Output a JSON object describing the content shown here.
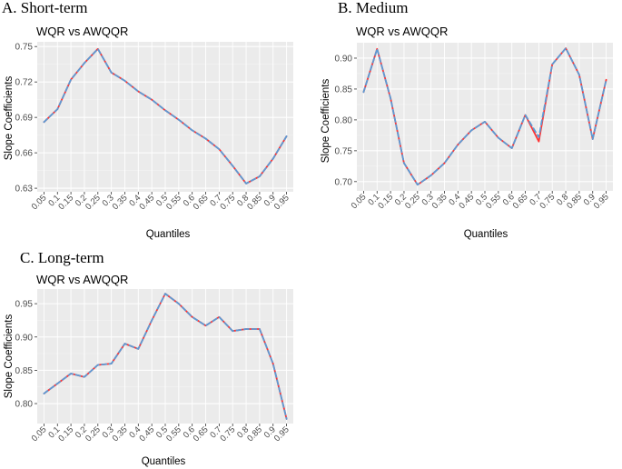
{
  "colors": {
    "panel_bg": "#ebebeb",
    "grid_major": "#ffffff",
    "grid_minor": "#f4f4f4",
    "wqr_line": "#ff3333",
    "awqqr_line": "#5b9bd5"
  },
  "chart_data": [
    {
      "type": "line",
      "panel_label": "A.  Short-term",
      "title": "WQR vs AWQQR",
      "xlabel": "Quantiles",
      "ylabel": "Slope Coefficients",
      "x": [
        0.05,
        0.1,
        0.15,
        0.2,
        0.25,
        0.3,
        0.35,
        0.4,
        0.45,
        0.5,
        0.55,
        0.6,
        0.65,
        0.7,
        0.75,
        0.8,
        0.85,
        0.9,
        0.95
      ],
      "xtick_labels": [
        "0.05",
        "0.1",
        "0.15",
        "0.2",
        "0.25",
        "0.3",
        "0.35",
        "0.4",
        "0.45",
        "0.5",
        "0.55",
        "0.6",
        "0.65",
        "0.7",
        "0.75",
        "0.8",
        "0.85",
        "0.9",
        "0.95"
      ],
      "series": [
        {
          "name": "WQR",
          "values": [
            0.686,
            0.697,
            0.722,
            0.736,
            0.748,
            0.728,
            0.721,
            0.712,
            0.705,
            0.696,
            0.688,
            0.679,
            0.672,
            0.663,
            0.649,
            0.634,
            0.64,
            0.655,
            0.674
          ]
        },
        {
          "name": "AWQQR",
          "values": [
            0.686,
            0.697,
            0.722,
            0.736,
            0.748,
            0.728,
            0.721,
            0.712,
            0.705,
            0.696,
            0.688,
            0.679,
            0.672,
            0.663,
            0.649,
            0.634,
            0.64,
            0.655,
            0.674
          ]
        }
      ],
      "ylim": [
        0.627,
        0.754
      ],
      "yticks": [
        0.63,
        0.66,
        0.69,
        0.72,
        0.75
      ],
      "ytick_labels": [
        "0.63",
        "0.66",
        "0.69",
        "0.72",
        "0.75"
      ],
      "grid": true
    },
    {
      "type": "line",
      "panel_label": "B.  Medium",
      "title": "WQR vs AWQQR",
      "xlabel": "Quantiles",
      "ylabel": "Slope Coefficients",
      "x": [
        0.05,
        0.1,
        0.15,
        0.2,
        0.25,
        0.3,
        0.35,
        0.4,
        0.45,
        0.5,
        0.55,
        0.6,
        0.65,
        0.7,
        0.75,
        0.8,
        0.85,
        0.9,
        0.95
      ],
      "xtick_labels": [
        "0.05",
        "0.1",
        "0.15",
        "0.2",
        "0.25",
        "0.3",
        "0.35",
        "0.4",
        "0.45",
        "0.5",
        "0.55",
        "0.6",
        "0.65",
        "0.7",
        "0.75",
        "0.8",
        "0.85",
        "0.9",
        "0.95"
      ],
      "series": [
        {
          "name": "WQR",
          "values": [
            0.845,
            0.915,
            0.835,
            0.73,
            0.695,
            0.71,
            0.73,
            0.76,
            0.783,
            0.797,
            0.771,
            0.754,
            0.808,
            0.765,
            0.89,
            0.916,
            0.873,
            0.769,
            0.865
          ]
        },
        {
          "name": "AWQQR",
          "values": [
            0.845,
            0.915,
            0.835,
            0.73,
            0.695,
            0.71,
            0.73,
            0.76,
            0.783,
            0.797,
            0.771,
            0.754,
            0.808,
            0.772,
            0.89,
            0.916,
            0.873,
            0.769,
            0.865
          ]
        }
      ],
      "ylim": [
        0.685,
        0.925
      ],
      "yticks": [
        0.7,
        0.75,
        0.8,
        0.85,
        0.9
      ],
      "ytick_labels": [
        "0.70",
        "0.75",
        "0.80",
        "0.85",
        "0.90"
      ],
      "grid": true
    },
    {
      "type": "line",
      "panel_label": "C.  Long-term",
      "title": "WQR vs AWQQR",
      "xlabel": "Quantiles",
      "ylabel": "Slope Coefficients",
      "x": [
        0.05,
        0.1,
        0.15,
        0.2,
        0.25,
        0.3,
        0.35,
        0.4,
        0.45,
        0.5,
        0.55,
        0.6,
        0.65,
        0.7,
        0.75,
        0.8,
        0.85,
        0.9,
        0.95
      ],
      "xtick_labels": [
        "0.05",
        "0.1",
        "0.15",
        "0.2",
        "0.25",
        "0.3",
        "0.35",
        "0.4",
        "0.45",
        "0.5",
        "0.55",
        "0.6",
        "0.65",
        "0.7",
        "0.75",
        "0.8",
        "0.85",
        "0.9",
        "0.95"
      ],
      "series": [
        {
          "name": "WQR",
          "values": [
            0.815,
            0.83,
            0.845,
            0.84,
            0.858,
            0.86,
            0.89,
            0.882,
            0.925,
            0.965,
            0.95,
            0.93,
            0.917,
            0.93,
            0.909,
            0.912,
            0.912,
            0.86,
            0.777
          ]
        },
        {
          "name": "AWQQR",
          "values": [
            0.815,
            0.83,
            0.845,
            0.84,
            0.858,
            0.86,
            0.89,
            0.882,
            0.925,
            0.965,
            0.95,
            0.93,
            0.917,
            0.93,
            0.909,
            0.912,
            0.912,
            0.86,
            0.777
          ]
        }
      ],
      "ylim": [
        0.77,
        0.972
      ],
      "yticks": [
        0.8,
        0.85,
        0.9,
        0.95
      ],
      "ytick_labels": [
        "0.80",
        "0.85",
        "0.90",
        "0.95"
      ],
      "grid": true
    }
  ]
}
